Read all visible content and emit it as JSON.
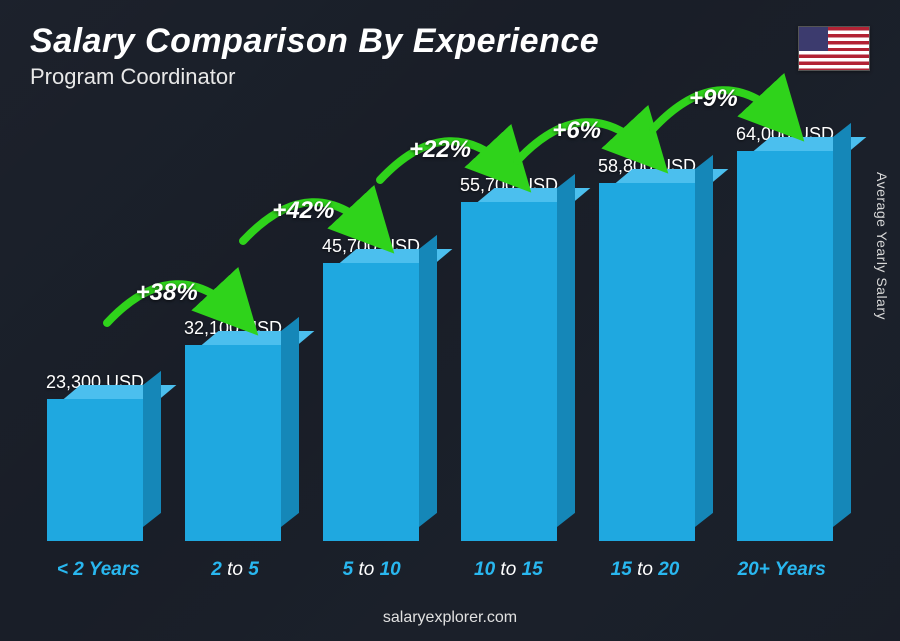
{
  "title": "Salary Comparison By Experience",
  "subtitle": "Program Coordinator",
  "y_axis_label": "Average Yearly Salary",
  "footer": "salaryexplorer.com",
  "flag": {
    "name": "us-flag",
    "colors": {
      "red": "#b22234",
      "white": "#ffffff",
      "blue": "#3c3b6e"
    }
  },
  "chart": {
    "type": "bar-3d",
    "max_value": 64000,
    "bar_colors": {
      "front": "#1fa8e0",
      "top": "#4bbfee",
      "side": "#1587b8"
    },
    "text_color": "#ffffff",
    "accent_color": "#29b7ef",
    "growth_color": "#2fd31b",
    "background_overlay": "rgba(20,25,35,0.78)",
    "bars": [
      {
        "category_a": "< 2",
        "category_b": "Years",
        "value": 23300,
        "value_label": "23,300 USD"
      },
      {
        "category_a": "2",
        "category_b": "to",
        "category_c": "5",
        "value": 32100,
        "value_label": "32,100 USD",
        "growth": "+38%"
      },
      {
        "category_a": "5",
        "category_b": "to",
        "category_c": "10",
        "value": 45700,
        "value_label": "45,700 USD",
        "growth": "+42%"
      },
      {
        "category_a": "10",
        "category_b": "to",
        "category_c": "15",
        "value": 55700,
        "value_label": "55,700 USD",
        "growth": "+22%"
      },
      {
        "category_a": "15",
        "category_b": "to",
        "category_c": "20",
        "value": 58800,
        "value_label": "58,800 USD",
        "growth": "+6%"
      },
      {
        "category_a": "20+",
        "category_b": "Years",
        "value": 64000,
        "value_label": "64,000 USD",
        "growth": "+9%"
      }
    ]
  }
}
